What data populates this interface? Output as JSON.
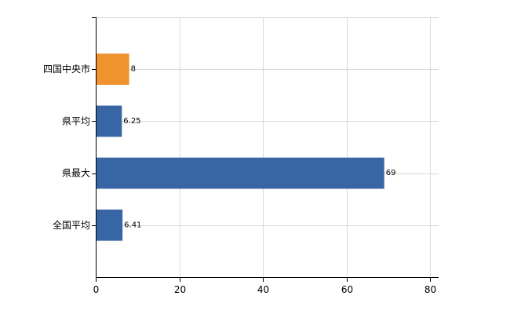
{
  "chart_data": {
    "type": "bar",
    "orientation": "horizontal",
    "categories": [
      "四国中央市",
      "県平均",
      "県最大",
      "全国平均"
    ],
    "values": [
      8,
      6.25,
      69,
      6.41
    ],
    "value_labels": [
      "8",
      "6.25",
      "69",
      "6.41"
    ],
    "bar_colors": [
      "#f0922e",
      "#3865a3",
      "#3865a3",
      "#3865a3"
    ],
    "x_ticks": [
      0,
      20,
      40,
      60,
      80
    ],
    "xlim": [
      0,
      82
    ],
    "grid": true,
    "title": "",
    "xlabel": "",
    "ylabel": ""
  }
}
